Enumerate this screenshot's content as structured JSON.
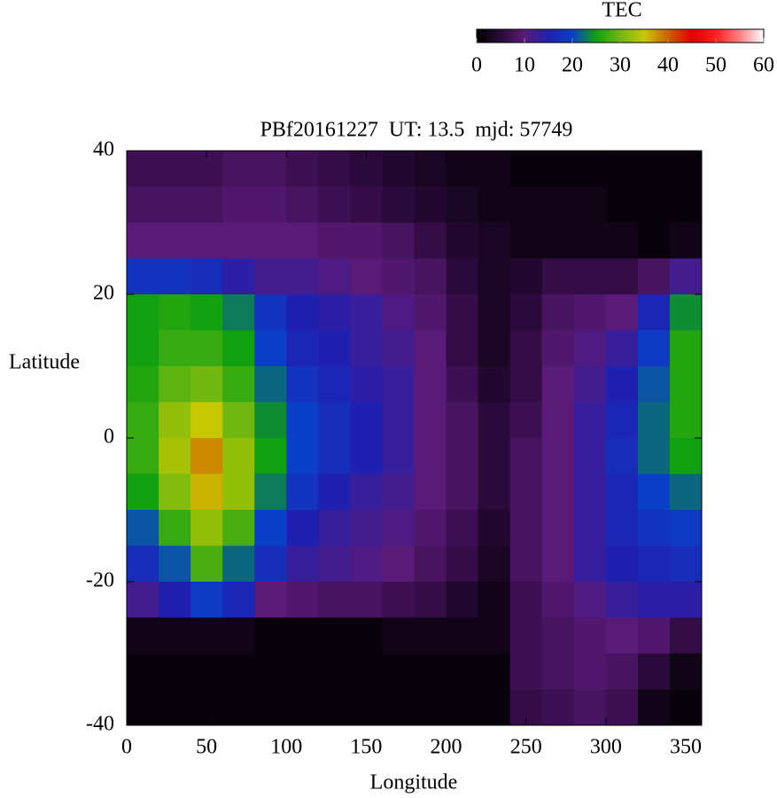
{
  "chart_data": {
    "type": "heatmap",
    "title": "PBf20161227  UT: 13.5  mjd: 57749",
    "xlabel": "Longitude",
    "ylabel": "Latitude",
    "colorbar_label": "TEC",
    "xlim": [
      0,
      360
    ],
    "xticks": [
      0,
      50,
      100,
      150,
      200,
      250,
      300,
      350
    ],
    "ylim": [
      -40,
      40
    ],
    "yticks": [
      -40,
      -20,
      0,
      20,
      40
    ],
    "zlim": [
      0,
      60
    ],
    "zticks": [
      0,
      10,
      20,
      30,
      40,
      50,
      60
    ],
    "colorscale": [
      [
        0,
        "#000000"
      ],
      [
        5,
        "#2a0a3a"
      ],
      [
        10,
        "#5a1a78"
      ],
      [
        15,
        "#2020b0"
      ],
      [
        20,
        "#0a40c8"
      ],
      [
        25,
        "#10a010"
      ],
      [
        30,
        "#70b810"
      ],
      [
        35,
        "#c8c800"
      ],
      [
        40,
        "#d06000"
      ],
      [
        45,
        "#e00000"
      ],
      [
        50,
        "#ff2020"
      ],
      [
        55,
        "#ff8080"
      ],
      [
        60,
        "#ffffff"
      ]
    ],
    "x": [
      10,
      30,
      50,
      70,
      90,
      110,
      130,
      150,
      170,
      190,
      210,
      230,
      250,
      270,
      290,
      310,
      330,
      350
    ],
    "y": [
      37.5,
      32.5,
      27.5,
      22.5,
      17.5,
      12.5,
      7.5,
      2.5,
      -2.5,
      -7.5,
      -12.5,
      -17.5,
      -22.5,
      -27.5,
      -32.5,
      -37.5
    ],
    "z": [
      [
        7,
        7,
        7,
        8,
        8,
        7,
        6,
        5,
        4,
        3,
        2,
        2,
        1,
        1,
        1,
        1,
        1,
        1
      ],
      [
        8,
        8,
        8,
        9,
        9,
        8,
        7,
        6,
        5,
        4,
        3,
        2,
        2,
        2,
        2,
        1,
        1,
        1
      ],
      [
        10,
        10,
        10,
        10,
        10,
        10,
        9,
        9,
        8,
        6,
        4,
        3,
        2,
        2,
        2,
        2,
        1,
        2
      ],
      [
        18,
        18,
        17,
        14,
        12,
        12,
        11,
        10,
        9,
        8,
        5,
        3,
        4,
        6,
        6,
        6,
        8,
        12
      ],
      [
        25,
        26,
        25,
        23,
        18,
        15,
        14,
        13,
        11,
        9,
        6,
        3,
        5,
        8,
        9,
        10,
        16,
        24
      ],
      [
        25,
        27,
        27,
        25,
        20,
        16,
        15,
        13,
        12,
        10,
        6,
        3,
        6,
        9,
        11,
        13,
        19,
        26
      ],
      [
        26,
        29,
        30,
        27,
        22,
        18,
        16,
        14,
        13,
        10,
        7,
        4,
        6,
        10,
        12,
        15,
        21,
        26
      ],
      [
        27,
        32,
        35,
        30,
        24,
        20,
        17,
        15,
        13,
        10,
        8,
        5,
        7,
        10,
        13,
        16,
        22,
        26
      ],
      [
        27,
        33,
        38,
        32,
        25,
        20,
        17,
        15,
        13,
        10,
        8,
        5,
        8,
        10,
        13,
        17,
        22,
        25
      ],
      [
        25,
        31,
        36,
        32,
        23,
        18,
        15,
        13,
        12,
        10,
        8,
        5,
        8,
        10,
        13,
        16,
        20,
        22
      ],
      [
        21,
        27,
        32,
        28,
        20,
        15,
        13,
        12,
        11,
        9,
        7,
        4,
        8,
        10,
        13,
        16,
        18,
        19
      ],
      [
        17,
        21,
        28,
        22,
        17,
        13,
        12,
        11,
        10,
        8,
        6,
        3,
        8,
        10,
        13,
        15,
        16,
        17
      ],
      [
        12,
        15,
        19,
        16,
        10,
        9,
        8,
        8,
        7,
        6,
        4,
        2,
        7,
        9,
        11,
        13,
        14,
        14
      ],
      [
        2,
        2,
        2,
        2,
        1,
        1,
        1,
        1,
        2,
        2,
        2,
        2,
        7,
        8,
        9,
        10,
        9,
        6
      ],
      [
        1,
        1,
        1,
        1,
        1,
        1,
        1,
        1,
        1,
        1,
        1,
        1,
        7,
        8,
        9,
        8,
        5,
        2
      ],
      [
        1,
        1,
        1,
        1,
        1,
        1,
        1,
        1,
        1,
        1,
        1,
        1,
        6,
        7,
        8,
        7,
        2,
        1
      ]
    ]
  }
}
